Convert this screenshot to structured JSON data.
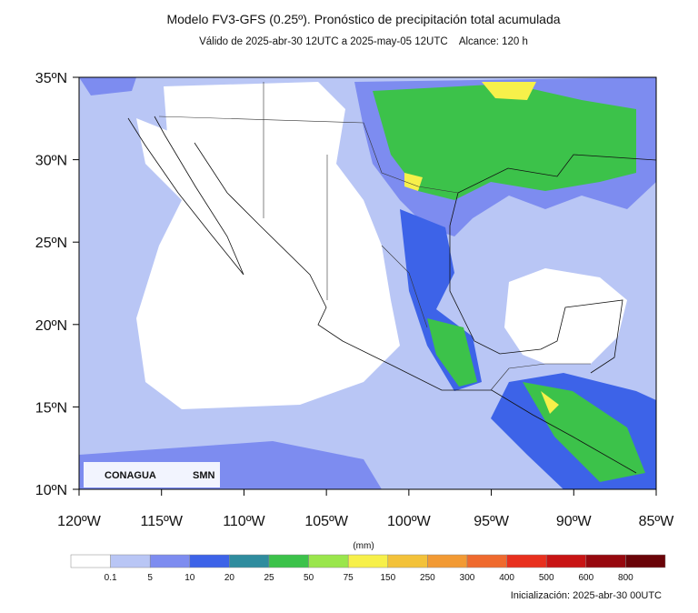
{
  "header": {
    "title": "Modelo FV3-GFS (0.25º). Pronóstico de precipitación total acumulada",
    "subtitle": "Válido de 2025-abr-30 12UTC a 2025-may-05 12UTC    Alcance: 120 h"
  },
  "map": {
    "lat_labels": [
      "35ºN",
      "30ºN",
      "25ºN",
      "20ºN",
      "15ºN",
      "10ºN"
    ],
    "lon_labels": [
      "120ºW",
      "115ºW",
      "110ºW",
      "105ºW",
      "100ºW",
      "95ºW",
      "90ºW",
      "85ºW"
    ]
  },
  "logos": {
    "left": "CONAGUA",
    "right": "SMN"
  },
  "legend": {
    "unit": "(mm)",
    "labels": [
      "0.1",
      "5",
      "10",
      "20",
      "25",
      "50",
      "75",
      "150",
      "250",
      "300",
      "400",
      "500",
      "600",
      "800"
    ],
    "colors": [
      "#ffffff",
      "#b9c6f5",
      "#7d8cf0",
      "#3d63e8",
      "#2f8c9e",
      "#3cc24a",
      "#9ae64c",
      "#f7f04a",
      "#f3c23a",
      "#f29a34",
      "#ef6a2e",
      "#e8301e",
      "#c81414",
      "#96080e",
      "#6a0408"
    ]
  },
  "footer": {
    "init": "Inicialización: 2025-abr-30 00UTC"
  }
}
